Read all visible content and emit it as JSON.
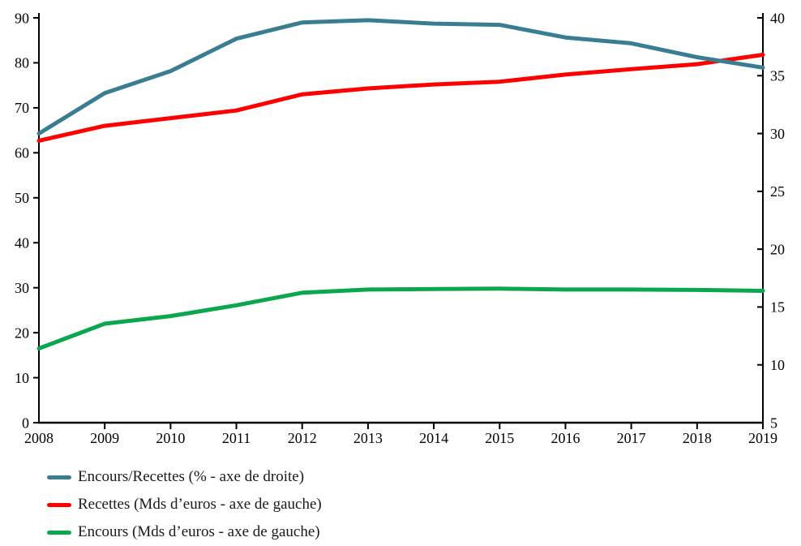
{
  "chart_data": {
    "type": "line",
    "title": "",
    "categories": [
      "2008",
      "2009",
      "2010",
      "2011",
      "2012",
      "2013",
      "2014",
      "2015",
      "2016",
      "2017",
      "2018",
      "2019"
    ],
    "series": [
      {
        "name": "Encours/Recettes (% - axe de droite)",
        "axis": "right",
        "color": "#397D93",
        "values": [
          30.0,
          33.5,
          35.4,
          38.2,
          39.6,
          39.8,
          39.5,
          39.4,
          38.3,
          37.8,
          36.6,
          35.7
        ]
      },
      {
        "name": "Recettes (Mds d’euros - axe de gauche)",
        "axis": "left",
        "color": "#FF0000",
        "values": [
          62.7,
          66.0,
          67.7,
          69.4,
          73.0,
          74.3,
          75.2,
          75.8,
          77.4,
          78.6,
          79.7,
          81.8
        ]
      },
      {
        "name": "Encours (Mds d’euros - axe de gauche)",
        "axis": "left",
        "color": "#0BA750",
        "values": [
          16.5,
          22.0,
          23.7,
          26.1,
          28.9,
          29.6,
          29.7,
          29.8,
          29.6,
          29.6,
          29.5,
          29.3
        ]
      }
    ],
    "left_axis": {
      "min": 0,
      "max": 90,
      "step": 10,
      "tick_labels": [
        "0",
        "10",
        "20",
        "30",
        "40",
        "50",
        "60",
        "70",
        "80",
        "90"
      ]
    },
    "right_axis": {
      "min": 5,
      "max": 40,
      "step": 5,
      "tick_labels": [
        "5",
        "10",
        "15",
        "20",
        "25",
        "30",
        "35",
        "40"
      ]
    },
    "xlabel": "",
    "ylabel": "",
    "grid": false,
    "legend_position": "bottom-left",
    "axis_color": "#000000",
    "background_color": "#FFFFFF"
  }
}
